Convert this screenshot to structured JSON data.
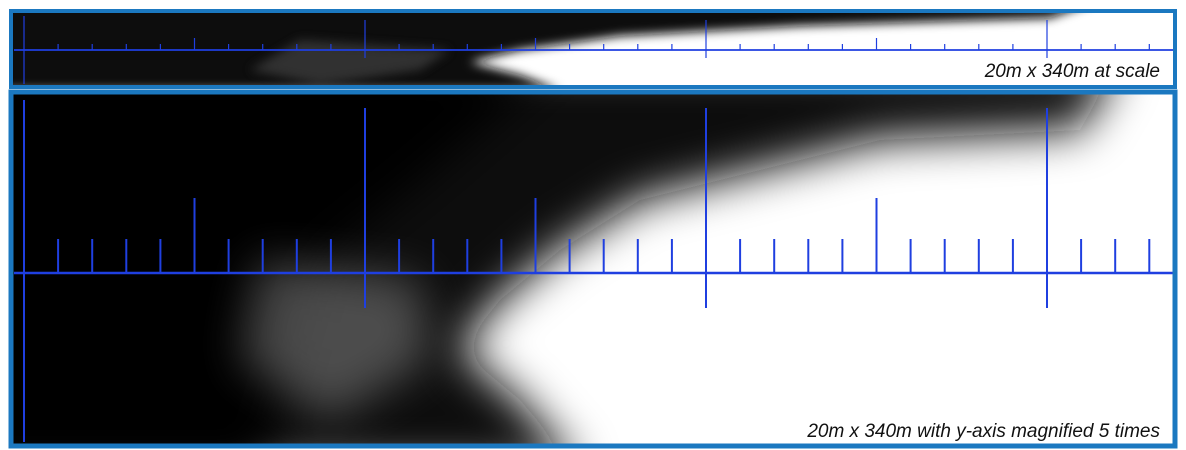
{
  "panels": [
    {
      "caption": "20m x 340m at scale"
    },
    {
      "caption": "20m x 340m with y-axis magnified 5 times"
    }
  ]
}
